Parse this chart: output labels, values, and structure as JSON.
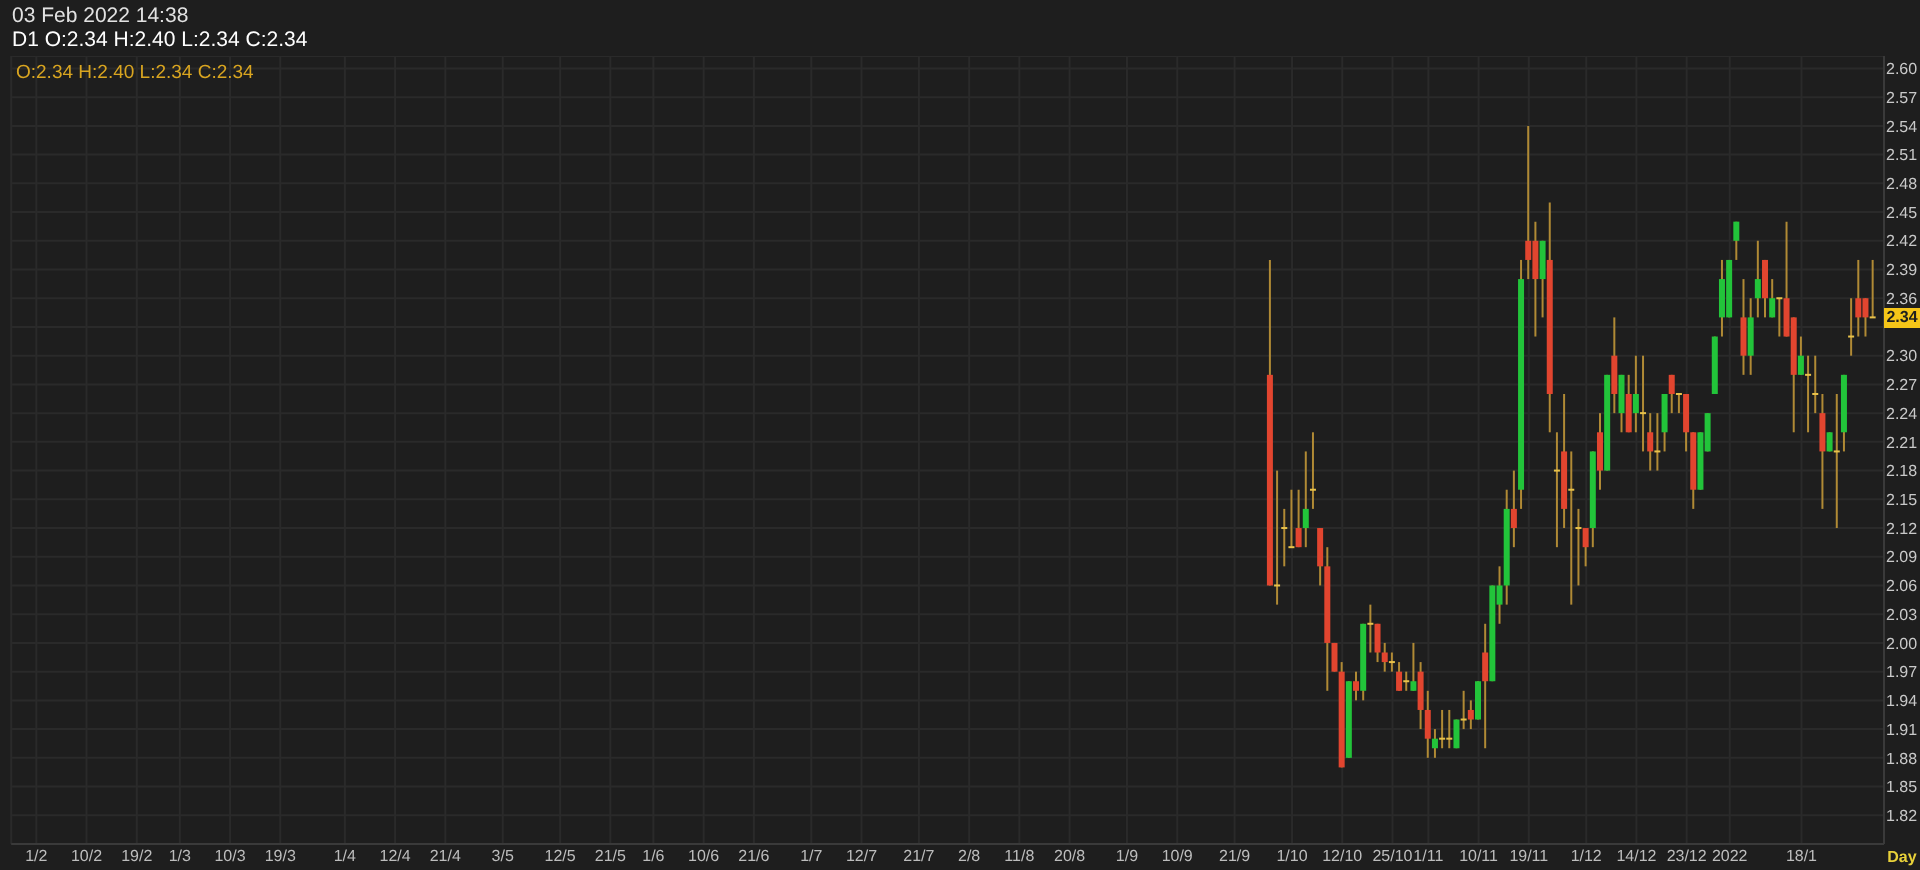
{
  "chart_data": {
    "type": "candlestick",
    "title": "03 Feb 2022 14:38",
    "subtitle": "D1 O:2.34 H:2.40 L:2.34 C:2.34",
    "xlabel": "Day",
    "annotations": [
      "O:2.34 H:2.40 L:2.34 C:2.34",
      {
        "text": "2.34",
        "y": 2.34
      }
    ],
    "categories": [
      null,
      null,
      null,
      "1/2",
      null,
      null,
      null,
      null,
      null,
      null,
      "10/2",
      null,
      null,
      null,
      null,
      null,
      null,
      "19/2",
      null,
      null,
      null,
      null,
      null,
      "1/3",
      null,
      null,
      null,
      null,
      null,
      null,
      "10/3",
      null,
      null,
      null,
      null,
      null,
      null,
      "19/3",
      null,
      null,
      null,
      null,
      null,
      null,
      null,
      null,
      "1/4",
      null,
      null,
      null,
      null,
      null,
      null,
      "12/4",
      null,
      null,
      null,
      null,
      null,
      null,
      "21/4",
      null,
      null,
      null,
      null,
      null,
      null,
      null,
      "3/5",
      null,
      null,
      null,
      null,
      null,
      null,
      null,
      "12/5",
      null,
      null,
      null,
      null,
      null,
      null,
      "21/5",
      null,
      null,
      null,
      null,
      null,
      "1/6",
      null,
      null,
      null,
      null,
      null,
      null,
      "10/6",
      null,
      null,
      null,
      null,
      null,
      null,
      "21/6",
      null,
      null,
      null,
      null,
      null,
      null,
      null,
      "1/7",
      null,
      null,
      null,
      null,
      null,
      null,
      "12/7",
      null,
      null,
      null,
      null,
      null,
      null,
      null,
      "21/7",
      null,
      null,
      null,
      null,
      null,
      null,
      "2/8",
      null,
      null,
      null,
      null,
      null,
      null,
      "11/8",
      null,
      null,
      null,
      null,
      null,
      null,
      "20/8",
      null,
      null,
      null,
      null,
      null,
      null,
      null,
      "1/9",
      null,
      null,
      null,
      null,
      null,
      null,
      "10/9",
      null,
      null,
      null,
      null,
      null,
      null,
      null,
      "21/9",
      null,
      null,
      null,
      null,
      null,
      null,
      null,
      "1/10",
      null,
      null,
      null,
      null,
      null,
      null,
      "12/10",
      null,
      null,
      null,
      null,
      null,
      null,
      "25/10",
      null,
      null,
      null,
      null,
      "1/11",
      null,
      null,
      null,
      null,
      null,
      null,
      "10/11",
      null,
      null,
      null,
      null,
      null,
      null,
      "19/11",
      null,
      null,
      null,
      null,
      null,
      null,
      null,
      "1/12",
      null,
      null,
      null,
      null,
      null,
      null,
      "14/12",
      null,
      null,
      null,
      null,
      null,
      null,
      "23/12",
      null,
      null,
      null,
      null,
      null,
      "2022",
      null,
      null,
      null,
      null,
      null,
      null,
      null,
      null,
      null,
      "18/1",
      null,
      null,
      null,
      null,
      null,
      null,
      null,
      null,
      null,
      null,
      null
    ],
    "ohlc": [
      null,
      null,
      null,
      null,
      null,
      null,
      null,
      null,
      null,
      null,
      null,
      null,
      null,
      null,
      null,
      null,
      null,
      null,
      null,
      null,
      null,
      null,
      null,
      null,
      null,
      null,
      null,
      null,
      null,
      null,
      null,
      null,
      null,
      null,
      null,
      null,
      null,
      null,
      null,
      null,
      null,
      null,
      null,
      null,
      null,
      null,
      null,
      null,
      null,
      null,
      null,
      null,
      null,
      null,
      null,
      null,
      null,
      null,
      null,
      null,
      null,
      null,
      null,
      null,
      null,
      null,
      null,
      null,
      null,
      null,
      null,
      null,
      null,
      null,
      null,
      null,
      null,
      null,
      null,
      null,
      null,
      null,
      null,
      null,
      null,
      null,
      null,
      null,
      null,
      null,
      null,
      null,
      null,
      null,
      null,
      null,
      null,
      null,
      null,
      null,
      null,
      null,
      null,
      null,
      null,
      null,
      null,
      null,
      null,
      null,
      null,
      null,
      null,
      null,
      null,
      null,
      null,
      null,
      null,
      null,
      null,
      null,
      null,
      null,
      null,
      null,
      null,
      null,
      null,
      null,
      null,
      null,
      null,
      null,
      null,
      null,
      null,
      null,
      null,
      null,
      null,
      null,
      null,
      null,
      null,
      null,
      null,
      null,
      null,
      null,
      null,
      null,
      null,
      null,
      null,
      null,
      null,
      null,
      null,
      null,
      null,
      null,
      null,
      null,
      null,
      null,
      null,
      null,
      null,
      null,
      null,
      null,
      null,
      null,
      null,
      [
        2.28,
        2.4,
        2.06,
        2.06
      ],
      [
        2.06,
        2.18,
        2.04,
        2.06
      ],
      [
        2.12,
        2.14,
        2.08,
        2.12
      ],
      [
        2.1,
        2.16,
        2.1,
        2.1
      ],
      [
        2.12,
        2.16,
        2.1,
        2.1
      ],
      [
        2.12,
        2.2,
        2.1,
        2.14
      ],
      [
        2.16,
        2.22,
        2.14,
        2.16
      ],
      [
        2.12,
        2.12,
        2.06,
        2.08
      ],
      [
        2.08,
        2.1,
        1.95,
        2.0
      ],
      [
        2.0,
        2.0,
        1.97,
        1.97
      ],
      [
        1.97,
        1.98,
        1.87,
        1.87
      ],
      [
        1.88,
        1.96,
        1.88,
        1.96
      ],
      [
        1.96,
        1.97,
        1.94,
        1.95
      ],
      [
        1.95,
        2.02,
        1.94,
        2.02
      ],
      [
        2.02,
        2.04,
        1.99,
        2.02
      ],
      [
        2.02,
        2.02,
        1.98,
        1.99
      ],
      [
        1.99,
        2.0,
        1.97,
        1.98
      ],
      [
        1.98,
        1.99,
        1.97,
        1.98
      ],
      [
        1.97,
        1.98,
        1.95,
        1.95
      ],
      [
        1.96,
        1.97,
        1.95,
        1.96
      ],
      [
        1.95,
        2.0,
        1.95,
        1.96
      ],
      [
        1.97,
        1.98,
        1.91,
        1.93
      ],
      [
        1.93,
        1.95,
        1.88,
        1.9
      ],
      [
        1.89,
        1.91,
        1.88,
        1.9
      ],
      [
        1.9,
        1.93,
        1.89,
        1.9
      ],
      [
        1.9,
        1.93,
        1.89,
        1.9
      ],
      [
        1.89,
        1.92,
        1.89,
        1.92
      ],
      [
        1.92,
        1.95,
        1.91,
        1.92
      ],
      [
        1.93,
        1.94,
        1.91,
        1.92
      ],
      [
        1.92,
        1.96,
        1.92,
        1.96
      ],
      [
        1.99,
        2.02,
        1.89,
        1.96
      ],
      [
        1.96,
        2.06,
        1.96,
        2.06
      ],
      [
        2.04,
        2.08,
        2.02,
        2.06
      ],
      [
        2.06,
        2.16,
        2.04,
        2.14
      ],
      [
        2.14,
        2.18,
        2.1,
        2.12
      ],
      [
        2.16,
        2.4,
        2.14,
        2.38
      ],
      [
        2.42,
        2.54,
        2.38,
        2.4
      ],
      [
        2.42,
        2.44,
        2.32,
        2.38
      ],
      [
        2.38,
        2.42,
        2.34,
        2.42
      ],
      [
        2.4,
        2.46,
        2.22,
        2.26
      ],
      [
        2.18,
        2.22,
        2.1,
        2.18
      ],
      [
        2.2,
        2.26,
        2.12,
        2.14
      ],
      [
        2.16,
        2.2,
        2.04,
        2.16
      ],
      [
        2.12,
        2.14,
        2.06,
        2.12
      ],
      [
        2.12,
        2.12,
        2.08,
        2.1
      ],
      [
        2.12,
        2.2,
        2.1,
        2.2
      ],
      [
        2.22,
        2.24,
        2.16,
        2.18
      ],
      [
        2.18,
        2.28,
        2.18,
        2.28
      ],
      [
        2.3,
        2.34,
        2.24,
        2.26
      ],
      [
        2.24,
        2.28,
        2.22,
        2.28
      ],
      [
        2.26,
        2.28,
        2.22,
        2.22
      ],
      [
        2.24,
        2.3,
        2.22,
        2.26
      ],
      [
        2.24,
        2.3,
        2.2,
        2.24
      ],
      [
        2.22,
        2.24,
        2.18,
        2.2
      ],
      [
        2.2,
        2.24,
        2.18,
        2.2
      ],
      [
        2.22,
        2.26,
        2.2,
        2.26
      ],
      [
        2.28,
        2.28,
        2.24,
        2.26
      ],
      [
        2.26,
        2.26,
        2.24,
        2.26
      ],
      [
        2.26,
        2.26,
        2.2,
        2.22
      ],
      [
        2.22,
        2.22,
        2.14,
        2.16
      ],
      [
        2.16,
        2.22,
        2.16,
        2.22
      ],
      [
        2.2,
        2.24,
        2.2,
        2.24
      ],
      [
        2.26,
        2.32,
        2.26,
        2.32
      ],
      [
        2.34,
        2.4,
        2.32,
        2.38
      ],
      [
        2.34,
        2.4,
        2.34,
        2.4
      ],
      [
        2.42,
        2.44,
        2.4,
        2.44
      ],
      [
        2.34,
        2.38,
        2.28,
        2.3
      ],
      [
        2.3,
        2.36,
        2.28,
        2.34
      ],
      [
        2.36,
        2.42,
        2.34,
        2.38
      ],
      [
        2.4,
        2.4,
        2.34,
        2.36
      ],
      [
        2.34,
        2.38,
        2.34,
        2.36
      ],
      [
        2.36,
        2.36,
        2.32,
        2.36
      ],
      [
        2.36,
        2.44,
        2.32,
        2.32
      ],
      [
        2.34,
        2.34,
        2.22,
        2.28
      ],
      [
        2.28,
        2.32,
        2.28,
        2.3
      ],
      [
        2.28,
        2.3,
        2.22,
        2.28
      ],
      [
        2.26,
        2.3,
        2.24,
        2.26
      ],
      [
        2.24,
        2.26,
        2.14,
        2.2
      ],
      [
        2.2,
        2.22,
        2.2,
        2.22
      ],
      [
        2.2,
        2.26,
        2.12,
        2.2
      ],
      [
        2.22,
        2.28,
        2.2,
        2.28
      ],
      [
        2.32,
        2.36,
        2.3,
        2.32
      ],
      [
        2.36,
        2.4,
        2.32,
        2.34
      ],
      [
        2.36,
        2.36,
        2.32,
        2.34
      ],
      [
        2.34,
        2.4,
        2.34,
        2.34
      ],
      null
    ],
    "colors": [
      null,
      null,
      null,
      null,
      null,
      null,
      null,
      null,
      null,
      null,
      null,
      null,
      null,
      null,
      null,
      null,
      null,
      null,
      null,
      null,
      null,
      null,
      null,
      null,
      null,
      null,
      null,
      null,
      null,
      null,
      null,
      null,
      null,
      null,
      null,
      null,
      null,
      null,
      null,
      null,
      null,
      null,
      null,
      null,
      null,
      null,
      null,
      null,
      null,
      null,
      null,
      null,
      null,
      null,
      null,
      null,
      null,
      null,
      null,
      null,
      null,
      null,
      null,
      null,
      null,
      null,
      null,
      null,
      null,
      null,
      null,
      null,
      null,
      null,
      null,
      null,
      null,
      null,
      null,
      null,
      null,
      null,
      null,
      null,
      null,
      null,
      null,
      null,
      null,
      null,
      null,
      null,
      null,
      null,
      null,
      null,
      null,
      null,
      null,
      null,
      null,
      null,
      null,
      null,
      null,
      null,
      null,
      null,
      null,
      null,
      null,
      null,
      null,
      null,
      null,
      null,
      null,
      null,
      null,
      null,
      null,
      null,
      null,
      null,
      null,
      null,
      null,
      null,
      null,
      null,
      null,
      null,
      null,
      null,
      null,
      null,
      null,
      null,
      null,
      null,
      null,
      null,
      null,
      null,
      null,
      null,
      null,
      null,
      null,
      null,
      null,
      null,
      null,
      null,
      null,
      null,
      null,
      null,
      null,
      null,
      null,
      null,
      null,
      null,
      null,
      null,
      null,
      null,
      null,
      null,
      null,
      null,
      null,
      null,
      null,
      "#e2452f",
      "#e8c24a",
      "#e8c24a",
      "#e8c24a",
      "#e2452f",
      "#22c43a",
      "#e8c24a",
      "#e2452f",
      "#e2452f",
      "#e2452f",
      "#e2452f",
      "#22c43a",
      "#e2452f",
      "#22c43a",
      "#e8c24a",
      "#e2452f",
      "#e2452f",
      "#e8c24a",
      "#e2452f",
      "#e8c24a",
      "#22c43a",
      "#e2452f",
      "#e2452f",
      "#22c43a",
      "#e8c24a",
      "#e8c24a",
      "#22c43a",
      "#e8c24a",
      "#e2452f",
      "#22c43a",
      "#e2452f",
      "#22c43a",
      "#22c43a",
      "#22c43a",
      "#e2452f",
      "#22c43a",
      "#e2452f",
      "#e2452f",
      "#22c43a",
      "#e2452f",
      "#e8c24a",
      "#e2452f",
      "#e8c24a",
      "#e8c24a",
      "#e2452f",
      "#22c43a",
      "#e2452f",
      "#22c43a",
      "#e2452f",
      "#22c43a",
      "#e2452f",
      "#22c43a",
      "#e8c24a",
      "#e2452f",
      "#e8c24a",
      "#22c43a",
      "#e2452f",
      "#e8c24a",
      "#e2452f",
      "#e2452f",
      "#22c43a",
      "#22c43a",
      "#22c43a",
      "#22c43a",
      "#22c43a",
      "#22c43a",
      "#e2452f",
      "#22c43a",
      "#22c43a",
      "#e2452f",
      "#22c43a",
      "#e8c24a",
      "#e2452f",
      "#e2452f",
      "#22c43a",
      "#e8c24a",
      "#e8c24a",
      "#e2452f",
      "#22c43a",
      "#e8c24a",
      "#22c43a",
      "#e8c24a",
      "#e2452f",
      "#e2452f",
      "#e8c24a",
      null
    ],
    "color": "#b08a35",
    "ylim": [
      1.79,
      2.613
    ],
    "yticks": [
      1.82,
      1.85,
      1.88,
      1.91,
      1.94,
      1.97,
      {
        "value": 2,
        "label": "2.00"
      },
      2.03,
      2.06,
      2.09,
      2.12,
      2.15,
      2.18,
      2.21,
      2.24,
      2.27,
      {
        "value": 2.3,
        "label": "2.30"
      },
      {
        "value": 2.33,
        "label": null
      },
      2.36,
      2.39,
      2.42,
      2.45,
      2.48,
      2.51,
      2.54,
      2.57,
      {
        "value": 2.6,
        "label": "2.60"
      }
    ],
    "grid": true
  }
}
